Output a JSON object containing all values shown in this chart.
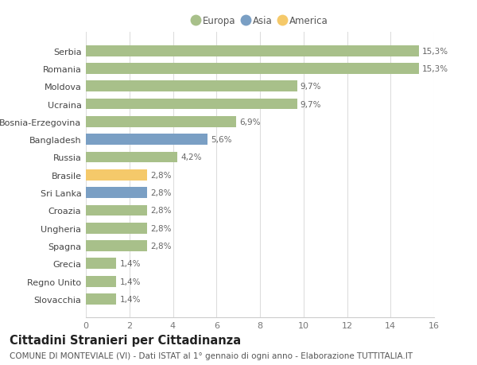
{
  "title": "Cittadini Stranieri per Cittadinanza",
  "subtitle": "COMUNE DI MONTEVIALE (VI) - Dati ISTAT al 1° gennaio di ogni anno - Elaborazione TUTTITALIA.IT",
  "categories": [
    "Slovacchia",
    "Regno Unito",
    "Grecia",
    "Spagna",
    "Ungheria",
    "Croazia",
    "Sri Lanka",
    "Brasile",
    "Russia",
    "Bangladesh",
    "Bosnia-Erzegovina",
    "Ucraina",
    "Moldova",
    "Romania",
    "Serbia"
  ],
  "values": [
    1.4,
    1.4,
    1.4,
    2.8,
    2.8,
    2.8,
    2.8,
    2.8,
    4.2,
    5.6,
    6.9,
    9.7,
    9.7,
    15.3,
    15.3
  ],
  "labels": [
    "1,4%",
    "1,4%",
    "1,4%",
    "2,8%",
    "2,8%",
    "2,8%",
    "2,8%",
    "2,8%",
    "4,2%",
    "5,6%",
    "6,9%",
    "9,7%",
    "9,7%",
    "15,3%",
    "15,3%"
  ],
  "continents": [
    "Europa",
    "Europa",
    "Europa",
    "Europa",
    "Europa",
    "Europa",
    "Asia",
    "America",
    "Europa",
    "Asia",
    "Europa",
    "Europa",
    "Europa",
    "Europa",
    "Europa"
  ],
  "color_europa": "#a8c08a",
  "color_asia": "#7a9fc4",
  "color_america": "#f5c96a",
  "xlim": [
    0,
    16
  ],
  "xticks": [
    0,
    2,
    4,
    6,
    8,
    10,
    12,
    14,
    16
  ],
  "background_color": "#ffffff",
  "grid_color": "#dddddd",
  "bar_height": 0.62,
  "title_fontsize": 10.5,
  "subtitle_fontsize": 7.5,
  "label_fontsize": 7.5,
  "tick_fontsize": 8,
  "legend_fontsize": 8.5
}
